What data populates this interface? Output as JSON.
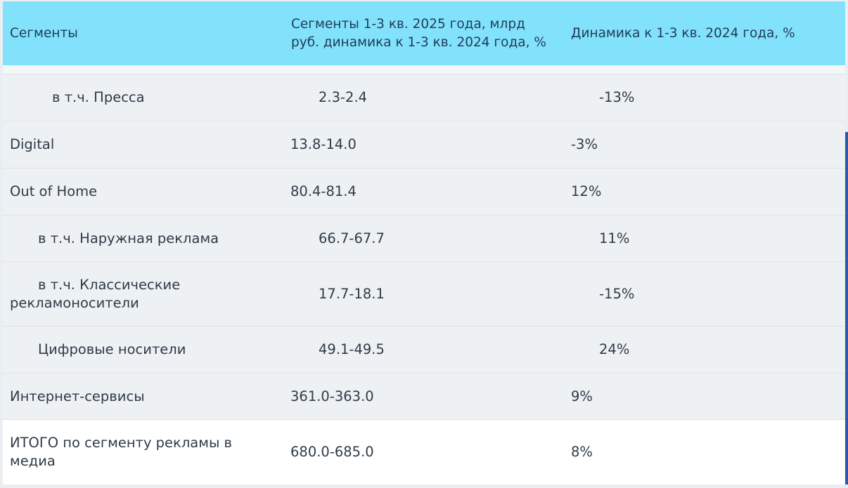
{
  "table": {
    "headers": {
      "segment": "Сегменты",
      "value_line1": "Сегменты 1-3 кв. 2025 года, млрд",
      "value_line2": "руб. динамика к 1-3 кв. 2024 года, %",
      "dynamics": "Динамика к 1-3 кв. 2024 года, %"
    },
    "rows": [
      {
        "segment": "в т.ч. Пресса",
        "value": "2.3-2.4",
        "dynamics": "-13%"
      },
      {
        "segment": "Digital",
        "value": "13.8-14.0",
        "dynamics": "-3%"
      },
      {
        "segment": "Out of Home",
        "value": "80.4-81.4",
        "dynamics": "12%"
      },
      {
        "segment": "в т.ч. Наружная реклама",
        "value": "66.7-67.7",
        "dynamics": "11%"
      },
      {
        "segment_line1": "в т.ч. Классические",
        "segment_line2": "рекламоносители",
        "value": "17.7-18.1",
        "dynamics": "-15%"
      },
      {
        "segment": "Цифровые носители",
        "value": "49.1-49.5",
        "dynamics": "24%"
      },
      {
        "segment": "Интернет-сервисы",
        "value": "361.0-363.0",
        "dynamics": "9%"
      },
      {
        "segment_line1": "ИТОГО по сегменту рекламы в",
        "segment_line2": "медиа",
        "value": "680.0-685.0",
        "dynamics": "8%"
      }
    ]
  }
}
